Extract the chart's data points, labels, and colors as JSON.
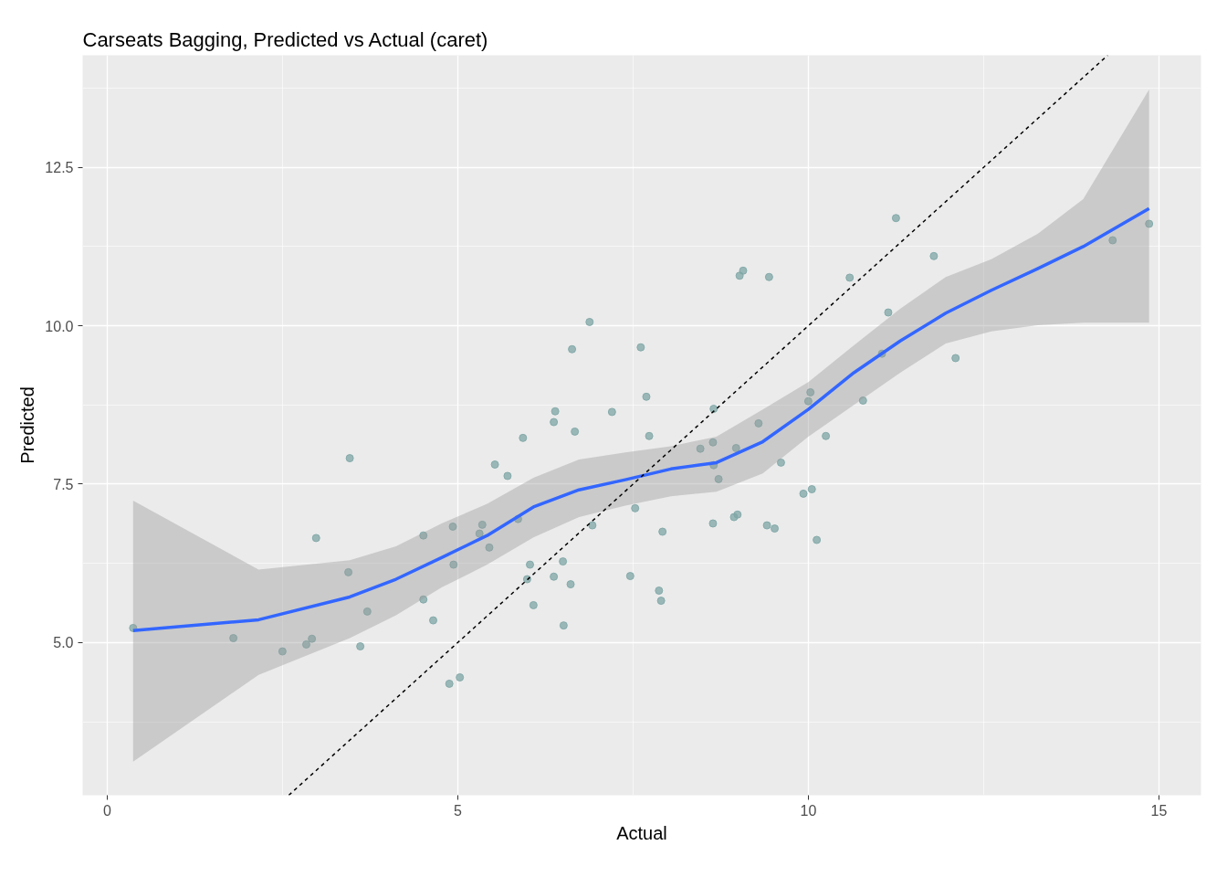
{
  "chart_data": {
    "type": "scatter",
    "title": "Carseats Bagging, Predicted vs Actual (caret)",
    "xlabel": "Actual",
    "ylabel": "Predicted",
    "xlim": [
      -0.35,
      15.6
    ],
    "ylim": [
      2.59,
      14.27
    ],
    "xticks": [
      0,
      5,
      10,
      15
    ],
    "yticks": [
      {
        "value": 5,
        "label": "5.0"
      },
      {
        "value": 7.5,
        "label": "7.5"
      },
      {
        "value": 10,
        "label": "10.0"
      },
      {
        "value": 12.5,
        "label": "12.5"
      }
    ],
    "grid": true,
    "series": [
      {
        "color": "#7fa6a6",
        "marker": "circle",
        "x": [
          0.37,
          1.8,
          2.5,
          2.84,
          2.92,
          2.98,
          3.44,
          3.46,
          3.61,
          3.71,
          4.51,
          4.51,
          4.65,
          4.88,
          4.93,
          4.94,
          5.03,
          5.31,
          5.35,
          5.45,
          5.53,
          5.71,
          5.86,
          5.93,
          5.99,
          6.03,
          6.08,
          6.37,
          6.39,
          6.37,
          6.5,
          6.51,
          6.61,
          6.63,
          6.67,
          6.88,
          6.92,
          7.2,
          7.46,
          7.53,
          7.61,
          7.69,
          7.73,
          7.87,
          7.9,
          7.92,
          8.46,
          8.64,
          8.65,
          8.64,
          8.65,
          8.72,
          8.94,
          8.99,
          8.97,
          9.02,
          9.07,
          9.29,
          9.41,
          9.44,
          9.52,
          9.61,
          9.93,
          10.0,
          10.03,
          10.05,
          10.12,
          10.25,
          10.59,
          10.78,
          11.05,
          11.14,
          11.25,
          11.79,
          12.1,
          14.34,
          14.86
        ],
        "values": [
          5.23,
          5.07,
          4.86,
          4.97,
          5.06,
          6.65,
          6.11,
          7.91,
          4.94,
          5.49,
          6.69,
          5.68,
          5.35,
          4.35,
          6.83,
          6.23,
          4.45,
          6.72,
          6.86,
          6.5,
          7.81,
          7.63,
          6.95,
          8.23,
          6.0,
          6.23,
          5.59,
          8.48,
          8.65,
          6.04,
          6.28,
          5.27,
          5.92,
          9.63,
          8.33,
          10.06,
          6.85,
          8.64,
          6.05,
          7.12,
          9.66,
          8.88,
          8.26,
          5.82,
          5.66,
          6.75,
          8.06,
          6.88,
          7.8,
          8.16,
          8.69,
          7.58,
          6.98,
          7.02,
          8.07,
          10.79,
          10.87,
          8.46,
          6.85,
          10.77,
          6.8,
          7.84,
          7.35,
          8.81,
          8.95,
          7.42,
          6.62,
          8.26,
          10.76,
          8.82,
          9.56,
          10.21,
          11.7,
          11.1,
          9.49,
          11.35,
          11.61
        ]
      },
      {
        "type": "line",
        "color": "#3366ff",
        "marker": "none",
        "line_style": "solid",
        "x": [
          0.37,
          2.16,
          3.46,
          4.12,
          4.77,
          5.42,
          6.08,
          6.73,
          7.39,
          8.04,
          8.69,
          9.35,
          10.0,
          10.65,
          11.31,
          11.96,
          12.61,
          13.27,
          13.92,
          14.86
        ],
        "values": [
          5.19,
          5.36,
          5.72,
          6.0,
          6.34,
          6.69,
          7.14,
          7.41,
          7.57,
          7.74,
          7.84,
          8.17,
          8.68,
          9.26,
          9.76,
          10.2,
          10.56,
          10.9,
          11.25,
          11.85
        ],
        "lower": [
          3.12,
          4.49,
          5.07,
          5.43,
          5.87,
          6.23,
          6.66,
          6.98,
          7.16,
          7.31,
          7.38,
          7.67,
          8.25,
          8.75,
          9.26,
          9.72,
          9.91,
          10.01,
          10.05,
          10.05
        ],
        "upper": [
          7.24,
          6.15,
          6.3,
          6.52,
          6.88,
          7.19,
          7.6,
          7.89,
          8.0,
          8.1,
          8.25,
          8.68,
          9.11,
          9.69,
          10.27,
          10.77,
          11.05,
          11.45,
          12.0,
          13.73
        ]
      },
      {
        "type": "line",
        "color": "#000000",
        "marker": "none",
        "line_style": "dashed",
        "x": [
          2.59,
          14.27
        ],
        "values": [
          2.59,
          14.27
        ]
      }
    ]
  }
}
